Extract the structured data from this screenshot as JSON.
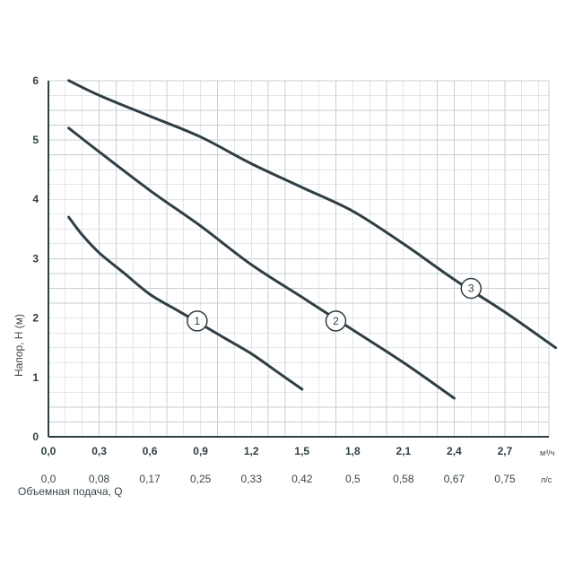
{
  "chart_data": {
    "type": "line",
    "xlabel": "Объемная подача, Q",
    "ylabel": "Напор, Н (м)",
    "x_unit": "м³/ч",
    "x2_unit": "л/с",
    "xlim": [
      0,
      3.0
    ],
    "ylim": [
      0,
      6
    ],
    "grid": true,
    "y_ticks": [
      "0",
      "1",
      "2",
      "3",
      "4",
      "5",
      "6"
    ],
    "x_ticks": [
      "0,0",
      "0,3",
      "0,6",
      "0,9",
      "1,2",
      "1,5",
      "1,8",
      "2,1",
      "2,4",
      "2,7"
    ],
    "x2_ticks": [
      "0,0",
      "0,08",
      "0,17",
      "0,25",
      "0,33",
      "0,42",
      "0,5",
      "0,58",
      "0,67",
      "0,75"
    ],
    "series": [
      {
        "name": "1",
        "marker_at": [
          0.88,
          1.95
        ],
        "points": [
          [
            0.12,
            3.7
          ],
          [
            0.2,
            3.4
          ],
          [
            0.3,
            3.1
          ],
          [
            0.45,
            2.75
          ],
          [
            0.6,
            2.4
          ],
          [
            0.75,
            2.15
          ],
          [
            0.9,
            1.9
          ],
          [
            1.05,
            1.65
          ],
          [
            1.2,
            1.4
          ],
          [
            1.35,
            1.1
          ],
          [
            1.5,
            0.8
          ]
        ]
      },
      {
        "name": "2",
        "marker_at": [
          1.7,
          1.95
        ],
        "points": [
          [
            0.12,
            5.2
          ],
          [
            0.3,
            4.8
          ],
          [
            0.6,
            4.15
          ],
          [
            0.9,
            3.55
          ],
          [
            1.2,
            2.9
          ],
          [
            1.5,
            2.35
          ],
          [
            1.8,
            1.8
          ],
          [
            2.1,
            1.25
          ],
          [
            2.4,
            0.65
          ]
        ]
      },
      {
        "name": "3",
        "marker_at": [
          2.5,
          2.5
        ],
        "points": [
          [
            0.12,
            6.0
          ],
          [
            0.3,
            5.75
          ],
          [
            0.6,
            5.4
          ],
          [
            0.9,
            5.05
          ],
          [
            1.2,
            4.6
          ],
          [
            1.5,
            4.2
          ],
          [
            1.8,
            3.8
          ],
          [
            2.1,
            3.25
          ],
          [
            2.4,
            2.65
          ],
          [
            2.7,
            2.1
          ],
          [
            3.0,
            1.5
          ]
        ]
      }
    ]
  },
  "colors": {
    "curve": "#2f3e45",
    "grid": "#c9cfd3",
    "text": "#3a464c"
  }
}
